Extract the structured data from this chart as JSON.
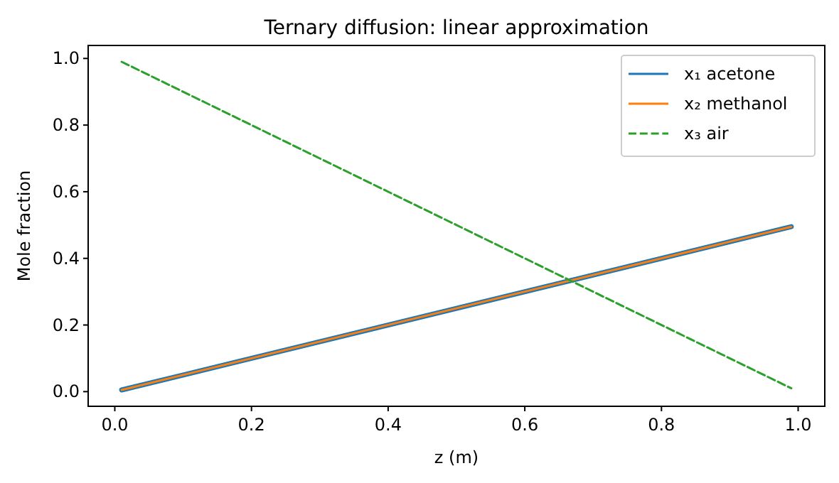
{
  "chart_data": {
    "type": "line",
    "title": "Ternary diffusion: linear approximation",
    "xlabel": "z (m)",
    "ylabel": "Mole fraction",
    "x": [
      0.01,
      0.99
    ],
    "series": [
      {
        "name": "x₁ acetone",
        "color": "#1f77b4",
        "values": [
          0.005,
          0.495
        ],
        "line_style": "solid"
      },
      {
        "name": "x₂ methanol",
        "color": "#ff7f0e",
        "values": [
          0.005,
          0.495
        ],
        "line_style": "solid"
      },
      {
        "name": "x₃ air",
        "color": "#2ca02c",
        "values": [
          0.99,
          0.01
        ],
        "line_style": "dashed"
      }
    ],
    "xlim": [
      -0.039,
      1.039
    ],
    "ylim": [
      -0.044,
      1.039
    ],
    "xticks": [
      {
        "value": 0,
        "label": "0.0"
      },
      {
        "value": 0.2,
        "label": "0.2"
      },
      {
        "value": 0.4,
        "label": "0.4"
      },
      {
        "value": 0.6,
        "label": "0.6"
      },
      {
        "value": 0.8,
        "label": "0.8"
      },
      {
        "value": 1,
        "label": "1.0"
      }
    ],
    "yticks": [
      {
        "value": 0,
        "label": "0.0"
      },
      {
        "value": 0.2,
        "label": "0.2"
      },
      {
        "value": 0.4,
        "label": "0.4"
      },
      {
        "value": 0.6,
        "label": "0.6"
      },
      {
        "value": 0.8,
        "label": "0.8"
      },
      {
        "value": 1,
        "label": "1.0"
      }
    ],
    "legend": "top right",
    "grid": false
  }
}
